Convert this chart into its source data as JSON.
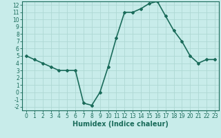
{
  "x": [
    0,
    1,
    2,
    3,
    4,
    5,
    6,
    7,
    8,
    9,
    10,
    11,
    12,
    13,
    14,
    15,
    16,
    17,
    18,
    19,
    20,
    21,
    22,
    23
  ],
  "y": [
    5.0,
    4.5,
    4.0,
    3.5,
    3.0,
    3.0,
    3.0,
    -1.5,
    -1.8,
    0.0,
    3.5,
    7.5,
    11.0,
    11.0,
    11.5,
    12.2,
    12.5,
    10.5,
    8.5,
    7.0,
    5.0,
    4.0,
    4.5,
    4.5
  ],
  "line_color": "#1a6b5a",
  "marker": "D",
  "marker_size": 2,
  "bg_color": "#c8ecea",
  "grid_color": "#aed8d4",
  "xlabel": "Humidex (Indice chaleur)",
  "xlim": [
    -0.5,
    23.5
  ],
  "ylim": [
    -2.5,
    12.5
  ],
  "xticks": [
    0,
    1,
    2,
    3,
    4,
    5,
    6,
    7,
    8,
    9,
    10,
    11,
    12,
    13,
    14,
    15,
    16,
    17,
    18,
    19,
    20,
    21,
    22,
    23
  ],
  "yticks": [
    -2,
    -1,
    0,
    1,
    2,
    3,
    4,
    5,
    6,
    7,
    8,
    9,
    10,
    11,
    12
  ],
  "axis_color": "#1a6b5a",
  "tick_label_fontsize": 5.5,
  "xlabel_fontsize": 7,
  "line_width": 1.2
}
